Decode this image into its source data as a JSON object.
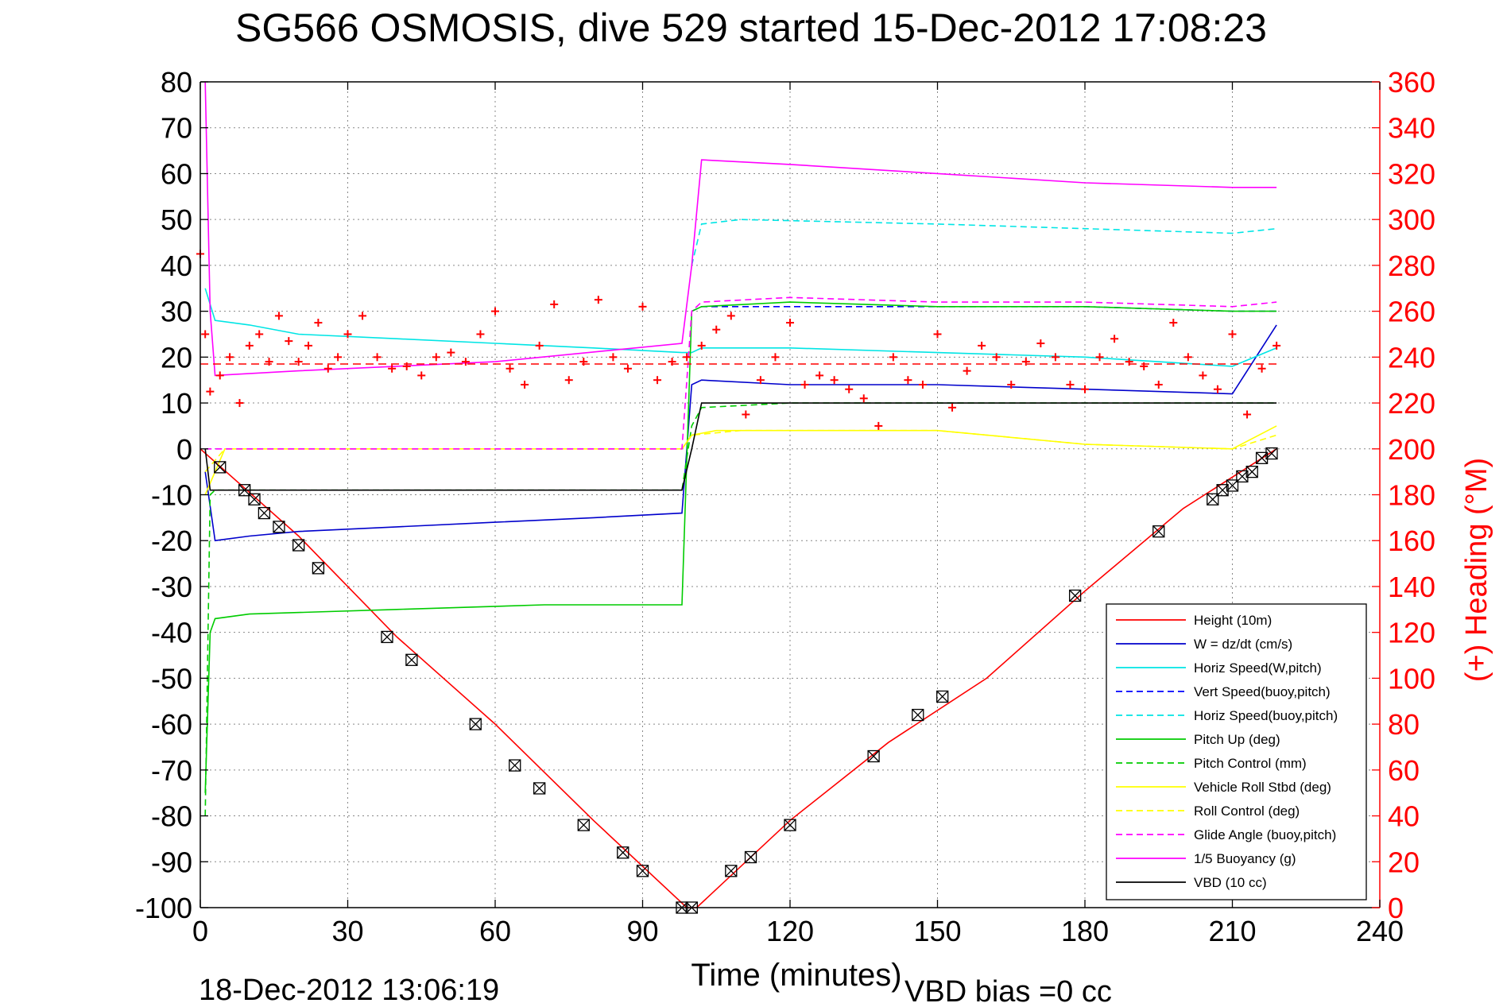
{
  "chart_data": {
    "type": "line",
    "title": "SG566 OSMOSIS, dive 529 started 15-Dec-2012 17:08:23",
    "xlabel": "Time (minutes)",
    "ylabel": "",
    "y2label": "(+) Heading (°M)",
    "xlim": [
      0,
      240
    ],
    "ylim": [
      -100,
      80
    ],
    "y2lim": [
      0,
      360
    ],
    "xticks": [
      0,
      30,
      60,
      90,
      120,
      150,
      180,
      210,
      240
    ],
    "yticks": [
      -100,
      -90,
      -80,
      -70,
      -60,
      -50,
      -40,
      -30,
      -20,
      -10,
      0,
      10,
      20,
      30,
      40,
      50,
      60,
      70,
      80
    ],
    "y2ticks": [
      0,
      20,
      40,
      60,
      80,
      100,
      120,
      140,
      160,
      180,
      200,
      220,
      240,
      260,
      280,
      300,
      320,
      340,
      360
    ],
    "grid": true,
    "legend_position": "bottom-right",
    "footer_left": "18-Dec-2012 13:06:19",
    "footer_right": "VBD bias =0 cc",
    "colors": {
      "red": "#ff0000",
      "blue": "#0000cc",
      "cyan": "#00e5e5",
      "green": "#00cc00",
      "yellow": "#ffff00",
      "magenta": "#ff00ff",
      "black": "#000000"
    },
    "series": [
      {
        "name": "Height (10m)",
        "color": "#ff0000",
        "style": "solid",
        "x": [
          0,
          20,
          40,
          60,
          80,
          99,
          101,
          120,
          140,
          160,
          180,
          200,
          219
        ],
        "y": [
          0,
          -19,
          -41,
          -60,
          -81,
          -100,
          -100,
          -81,
          -64,
          -50,
          -31,
          -13,
          0
        ]
      },
      {
        "name": "W = dz/dt (cm/s)",
        "color": "#0000cc",
        "style": "solid",
        "x": [
          1,
          3,
          10,
          20,
          40,
          60,
          80,
          98,
          100,
          102,
          120,
          150,
          180,
          210,
          219
        ],
        "y": [
          -5,
          -20,
          -19,
          -18,
          -17,
          -16,
          -15,
          -14,
          14,
          15,
          14,
          14,
          13,
          12,
          27
        ]
      },
      {
        "name": "Horiz Speed(W,pitch)",
        "color": "#00e5e5",
        "style": "solid",
        "x": [
          1,
          3,
          10,
          20,
          40,
          60,
          80,
          98,
          100,
          102,
          120,
          150,
          180,
          210,
          219
        ],
        "y": [
          35,
          28,
          27,
          25,
          24,
          23,
          22,
          21,
          21,
          22,
          22,
          21,
          20,
          18,
          22
        ]
      },
      {
        "name": "Vert Speed(buoy,pitch)",
        "color": "#0000ff",
        "style": "dashed",
        "x": [
          100,
          102,
          120,
          150,
          180,
          210,
          219
        ],
        "y": [
          30,
          31,
          31,
          31,
          31,
          30,
          30
        ]
      },
      {
        "name": "Horiz Speed(buoy,pitch)",
        "color": "#00e5e5",
        "style": "dashed",
        "x": [
          100,
          102,
          110,
          150,
          180,
          210,
          219
        ],
        "y": [
          40,
          49,
          50,
          49,
          48,
          47,
          48
        ]
      },
      {
        "name": "Pitch Up (deg)",
        "color": "#00cc00",
        "style": "solid",
        "x": [
          1,
          2,
          3,
          10,
          40,
          70,
          98,
          100,
          102,
          120,
          150,
          180,
          210,
          219
        ],
        "y": [
          -75,
          -40,
          -37,
          -36,
          -35,
          -34,
          -34,
          30,
          31,
          32,
          31,
          31,
          30,
          30
        ]
      },
      {
        "name": "Pitch Control (mm)",
        "color": "#00cc00",
        "style": "dashed",
        "x": [
          1,
          2,
          3,
          20,
          60,
          98,
          100,
          102,
          120,
          150,
          180,
          210,
          219
        ],
        "y": [
          -80,
          -10,
          -9,
          -9,
          -9,
          -9,
          5,
          9,
          10,
          10,
          10,
          10,
          10
        ]
      },
      {
        "name": "Vehicle Roll Stbd (deg)",
        "color": "#ffff00",
        "style": "solid",
        "x": [
          1,
          5,
          20,
          40,
          60,
          80,
          98,
          100,
          105,
          120,
          150,
          180,
          210,
          219
        ],
        "y": [
          -10,
          0,
          0,
          0,
          0,
          0,
          0,
          3,
          4,
          4,
          4,
          1,
          0,
          5
        ]
      },
      {
        "name": "Roll Control (deg)",
        "color": "#ffff00",
        "style": "dashed",
        "x": [
          1,
          5,
          40,
          80,
          98,
          100,
          110,
          150,
          180,
          210,
          219
        ],
        "y": [
          -5,
          0,
          0,
          0,
          0,
          3,
          4,
          4,
          1,
          0,
          3
        ]
      },
      {
        "name": "Glide Angle (buoy,pitch)",
        "color": "#ff00ff",
        "style": "dashed",
        "x": [
          1,
          10,
          40,
          70,
          98,
          100,
          102,
          120,
          150,
          180,
          210,
          219
        ],
        "y": [
          0,
          0,
          0,
          0,
          0,
          30,
          32,
          33,
          32,
          32,
          31,
          32
        ]
      },
      {
        "name": "1/5 Buoyancy (g)",
        "color": "#ff00ff",
        "style": "solid",
        "x": [
          1,
          2,
          3,
          20,
          60,
          98,
          100,
          102,
          120,
          150,
          180,
          210,
          219
        ],
        "y": [
          80,
          30,
          16,
          17,
          19,
          23,
          40,
          63,
          62,
          60,
          58,
          57,
          57
        ]
      },
      {
        "name": "VBD (10 cc)",
        "color": "#000000",
        "style": "solid",
        "x": [
          1,
          2,
          3,
          40,
          80,
          98,
          100,
          102,
          120,
          150,
          180,
          210,
          219
        ],
        "y": [
          0,
          -9,
          -9,
          -9,
          -9,
          -9,
          0,
          10,
          10,
          10,
          10,
          10,
          10
        ]
      }
    ],
    "heading": {
      "marker": "+",
      "color": "#ff0000",
      "axis": "right",
      "mean": 237,
      "x": [
        0,
        1,
        2,
        4,
        6,
        8,
        10,
        12,
        14,
        16,
        18,
        20,
        22,
        24,
        26,
        28,
        30,
        33,
        36,
        39,
        42,
        45,
        48,
        51,
        54,
        57,
        60,
        63,
        66,
        69,
        72,
        75,
        78,
        81,
        84,
        87,
        90,
        93,
        96,
        99,
        102,
        105,
        108,
        111,
        114,
        117,
        120,
        123,
        126,
        129,
        132,
        135,
        138,
        141,
        144,
        147,
        150,
        153,
        156,
        159,
        162,
        165,
        168,
        171,
        174,
        177,
        180,
        183,
        186,
        189,
        192,
        195,
        198,
        201,
        204,
        207,
        210,
        213,
        216,
        219
      ],
      "y": [
        285,
        250,
        225,
        232,
        240,
        220,
        245,
        250,
        238,
        258,
        247,
        238,
        245,
        255,
        235,
        240,
        250,
        258,
        240,
        235,
        236,
        232,
        240,
        242,
        238,
        250,
        260,
        235,
        228,
        245,
        263,
        230,
        238,
        265,
        240,
        235,
        262,
        230,
        238,
        240,
        245,
        252,
        258,
        215,
        230,
        240,
        255,
        228,
        232,
        230,
        226,
        222,
        210,
        240,
        230,
        228,
        250,
        218,
        234,
        245,
        240,
        228,
        238,
        246,
        240,
        228,
        226,
        240,
        248,
        238,
        236,
        228,
        255,
        240,
        232,
        226,
        250,
        215,
        235,
        245
      ]
    },
    "depth_markers": {
      "marker": "square-with-x",
      "color": "#000000",
      "x": [
        4,
        9,
        11,
        13,
        16,
        20,
        24,
        38,
        43,
        56,
        64,
        69,
        78,
        86,
        90,
        98,
        100,
        108,
        112,
        120,
        137,
        146,
        151,
        178,
        195,
        206,
        208,
        210,
        212,
        214,
        216,
        218
      ],
      "y": [
        -4,
        -9,
        -11,
        -14,
        -17,
        -21,
        -26,
        -41,
        -46,
        -60,
        -69,
        -74,
        -82,
        -88,
        -92,
        -100,
        -100,
        -92,
        -89,
        -82,
        -67,
        -58,
        -54,
        -32,
        -18,
        -11,
        -9,
        -8,
        -6,
        -5,
        -2,
        -1
      ]
    }
  }
}
